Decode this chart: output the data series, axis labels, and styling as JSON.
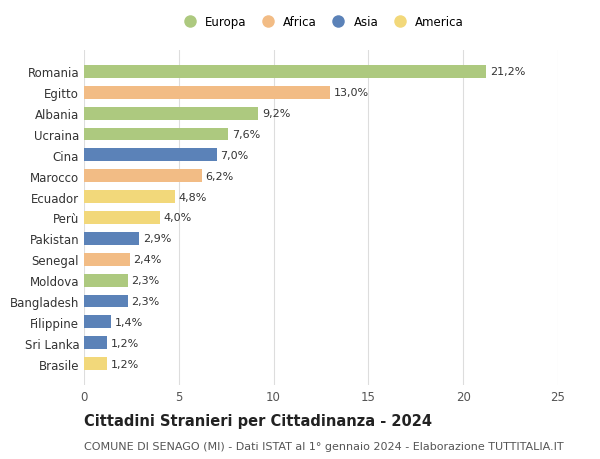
{
  "categories": [
    "Brasile",
    "Sri Lanka",
    "Filippine",
    "Bangladesh",
    "Moldova",
    "Senegal",
    "Pakistan",
    "Perù",
    "Ecuador",
    "Marocco",
    "Cina",
    "Ucraina",
    "Albania",
    "Egitto",
    "Romania"
  ],
  "values": [
    1.2,
    1.2,
    1.4,
    2.3,
    2.3,
    2.4,
    2.9,
    4.0,
    4.8,
    6.2,
    7.0,
    7.6,
    9.2,
    13.0,
    21.2
  ],
  "continents": [
    "America",
    "Asia",
    "Asia",
    "Asia",
    "Europa",
    "Africa",
    "Asia",
    "America",
    "America",
    "Africa",
    "Asia",
    "Europa",
    "Europa",
    "Africa",
    "Europa"
  ],
  "labels": [
    "1,2%",
    "1,2%",
    "1,4%",
    "2,3%",
    "2,3%",
    "2,4%",
    "2,9%",
    "4,0%",
    "4,8%",
    "6,2%",
    "7,0%",
    "7,6%",
    "9,2%",
    "13,0%",
    "21,2%"
  ],
  "colors": {
    "Europa": "#adc97f",
    "Africa": "#f2bc85",
    "Asia": "#5b82b8",
    "America": "#f2d87a"
  },
  "legend_order": [
    "Europa",
    "Africa",
    "Asia",
    "America"
  ],
  "xlim": [
    0,
    25
  ],
  "xticks": [
    0,
    5,
    10,
    15,
    20,
    25
  ],
  "title": "Cittadini Stranieri per Cittadinanza - 2024",
  "subtitle": "COMUNE DI SENAGO (MI) - Dati ISTAT al 1° gennaio 2024 - Elaborazione TUTTITALIA.IT",
  "background_color": "#ffffff",
  "bar_height": 0.62,
  "title_fontsize": 10.5,
  "subtitle_fontsize": 8,
  "axis_label_fontsize": 8.5,
  "bar_label_fontsize": 8,
  "legend_fontsize": 8.5,
  "ytick_fontsize": 8.5
}
